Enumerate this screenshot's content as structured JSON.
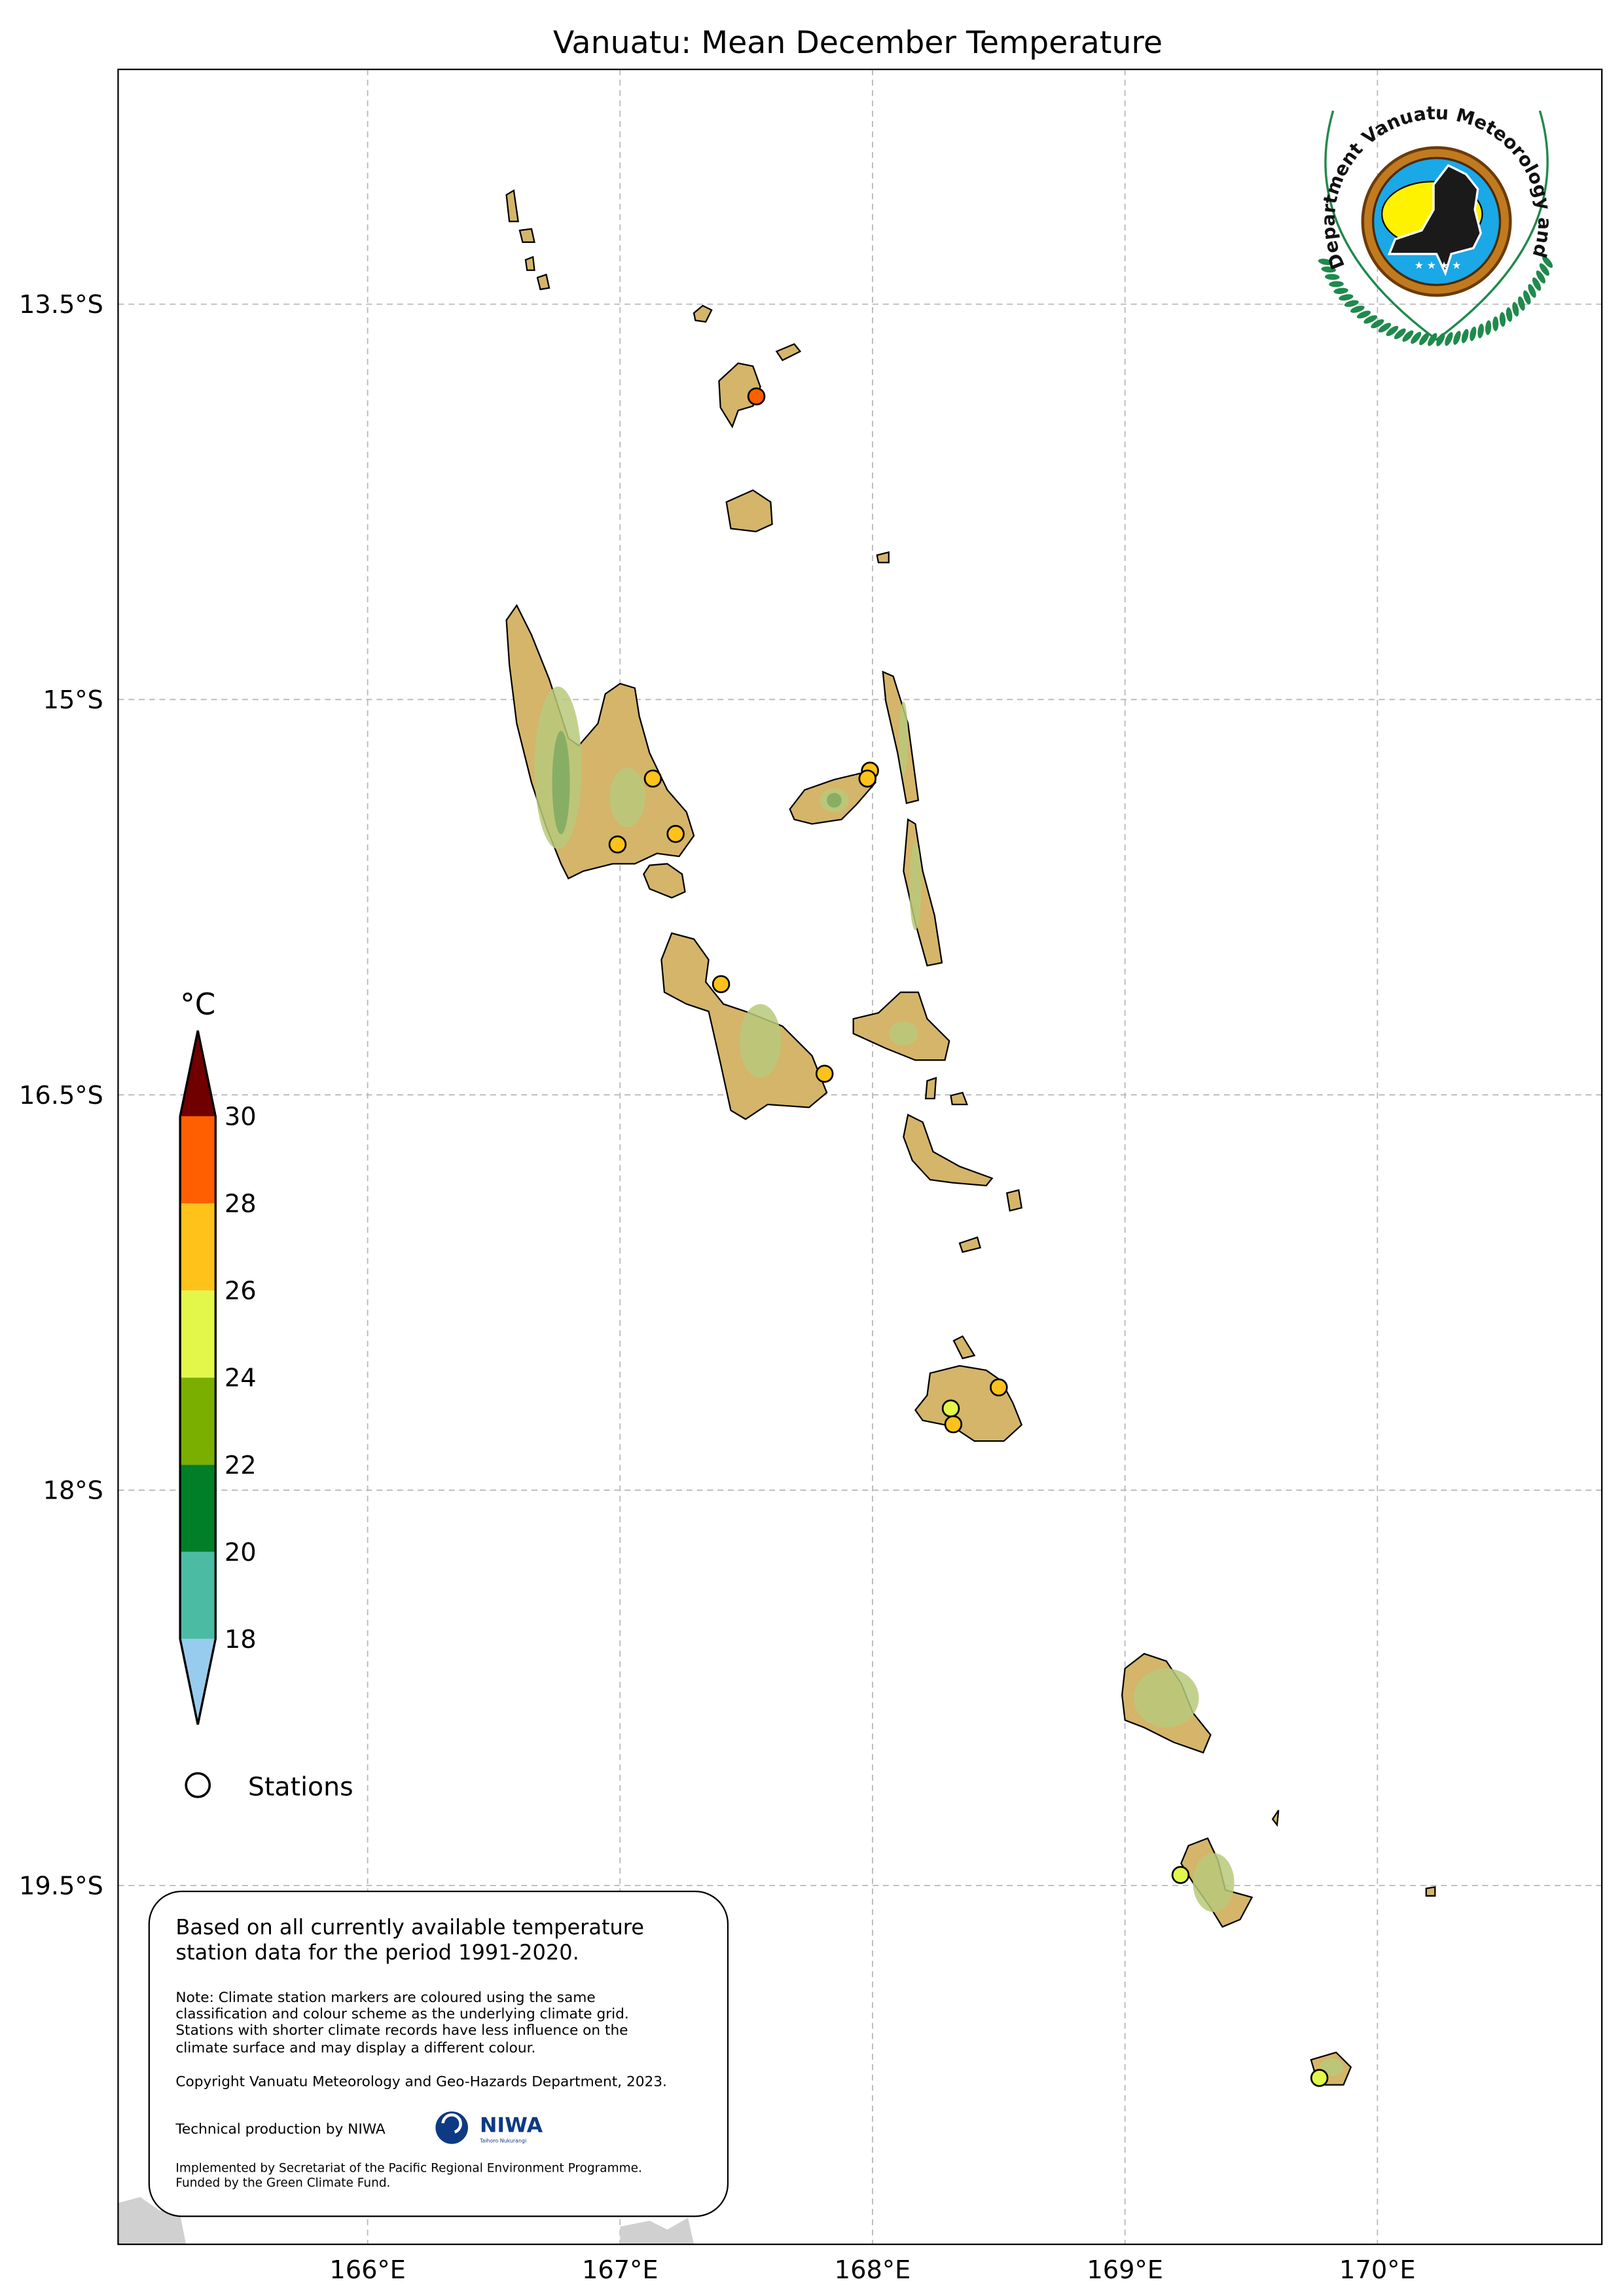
{
  "title": "Vanuatu: Mean December Temperature",
  "axes": {
    "lon_ticks": [
      "166°E",
      "167°E",
      "168°E",
      "169°E",
      "170°E"
    ],
    "lon_values": [
      166,
      167,
      168,
      169,
      170
    ],
    "lat_ticks": [
      "13.5°S",
      "15°S",
      "16.5°S",
      "18°S",
      "19.5°S"
    ],
    "lat_values": [
      13.5,
      15,
      16.5,
      18,
      19.5
    ],
    "lon_range": [
      165.01,
      170.88
    ],
    "lat_range": [
      12.61,
      20.87
    ],
    "grid": true
  },
  "colorbar": {
    "unit": "°C",
    "boundaries": [
      18,
      20,
      22,
      24,
      26,
      28,
      30
    ],
    "labels": [
      "18",
      "20",
      "22",
      "24",
      "26",
      "28",
      "30"
    ],
    "colors": [
      "#4bbba4",
      "#007f28",
      "#7aaf00",
      "#e3f74a",
      "#ffc21a",
      "#ff5f00"
    ],
    "under_color": "#98ccee",
    "over_color": "#700000",
    "extend": "both"
  },
  "legend": {
    "stations_label": "Stations"
  },
  "stations": [
    {
      "lon": 167.54,
      "lat": 13.85,
      "color": "#ff5f00"
    },
    {
      "lon": 167.13,
      "lat": 15.3,
      "color": "#ffc21a"
    },
    {
      "lon": 167.22,
      "lat": 15.51,
      "color": "#ffc21a"
    },
    {
      "lon": 166.99,
      "lat": 15.55,
      "color": "#ffc21a"
    },
    {
      "lon": 167.99,
      "lat": 15.27,
      "color": "#ffc21a"
    },
    {
      "lon": 167.98,
      "lat": 15.3,
      "color": "#ffc21a"
    },
    {
      "lon": 167.4,
      "lat": 16.08,
      "color": "#ffc21a"
    },
    {
      "lon": 167.81,
      "lat": 16.42,
      "color": "#ffc21a"
    },
    {
      "lon": 168.5,
      "lat": 17.61,
      "color": "#ffc21a"
    },
    {
      "lon": 168.31,
      "lat": 17.69,
      "color": "#e3f74a"
    },
    {
      "lon": 168.32,
      "lat": 17.75,
      "color": "#ffc21a"
    },
    {
      "lon": 169.22,
      "lat": 19.46,
      "color": "#e3f74a"
    },
    {
      "lon": 169.77,
      "lat": 20.23,
      "color": "#e3f74a"
    }
  ],
  "info_box": {
    "line1": "Based on all currently available temperature",
    "line2": "station data for the period 1991-2020.",
    "note1": "Note: Climate station markers are coloured using the same",
    "note2": "classification and colour scheme as the underlying climate grid.",
    "note3": "Stations with shorter climate records have less influence on the",
    "note4": "climate surface and may display a different colour.",
    "copyright": "Copyright Vanuatu Meteorology and Geo-Hazards Department, 2023.",
    "technical": "Technical production by NIWA",
    "impl1": "Implemented by Secretariat of the Pacific Regional Environment Programme.",
    "impl2": "Funded by the Green Climate Fund."
  },
  "niwa_logo": {
    "name": "NIWA",
    "subtitle": "Taihoro Nukurangi",
    "color": "#0d3a82"
  },
  "vmgd_logo": {
    "text": "Department Vanuatu Meteorology and Geo-Hazards",
    "colors": {
      "wreath": "#1f8a4c",
      "sky": "#1aa8e6",
      "sun": "#fff200",
      "ring": "#c27a1e"
    }
  }
}
